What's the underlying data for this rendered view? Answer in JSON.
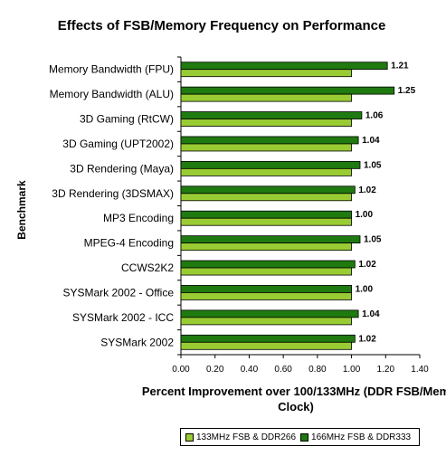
{
  "chart_data": {
    "type": "bar",
    "orientation": "horizontal",
    "title": "Effects of FSB/Memory Frequency on Performance",
    "xlabel_line1": "Percent Improvement over 100/133MHz (DDR FSB/Mem",
    "xlabel_line2": "Clock)",
    "ylabel": "Benchmark",
    "xlim": [
      0,
      1.4
    ],
    "xticks": [
      "0.00",
      "0.20",
      "0.40",
      "0.60",
      "0.80",
      "1.00",
      "1.20",
      "1.40"
    ],
    "grid": false,
    "legend_position": "bottom-right",
    "categories": [
      "Memory Bandwidth (FPU)",
      "Memory Bandwidth (ALU)",
      "3D Gaming (RtCW)",
      "3D Gaming (UPT2002)",
      "3D Rendering (Maya)",
      "3D Rendering (3DSMAX)",
      "MP3 Encoding",
      "MPEG-4 Encoding",
      "CCWS2K2",
      "SYSMark 2002 - Office",
      "SYSMark 2002 - ICC",
      "SYSMark 2002"
    ],
    "series": [
      {
        "name": "133MHz FSB & DDR266",
        "color": "#99cc33",
        "values": [
          1,
          1,
          1,
          1,
          1,
          1,
          1,
          1,
          1,
          1,
          1,
          1
        ]
      },
      {
        "name": "166MHz FSB & DDR333",
        "color": "#1f7a0f",
        "values": [
          1.21,
          1.25,
          1.06,
          1.04,
          1.05,
          1.02,
          1.0,
          1.05,
          1.02,
          1.0,
          1.04,
          1.02
        ],
        "data_labels": [
          "1.21",
          "1.25",
          "1.06",
          "1.04",
          "1.05",
          "1.02",
          "1.00",
          "1.05",
          "1.02",
          "1.00",
          "1.04",
          "1.02"
        ]
      }
    ]
  }
}
